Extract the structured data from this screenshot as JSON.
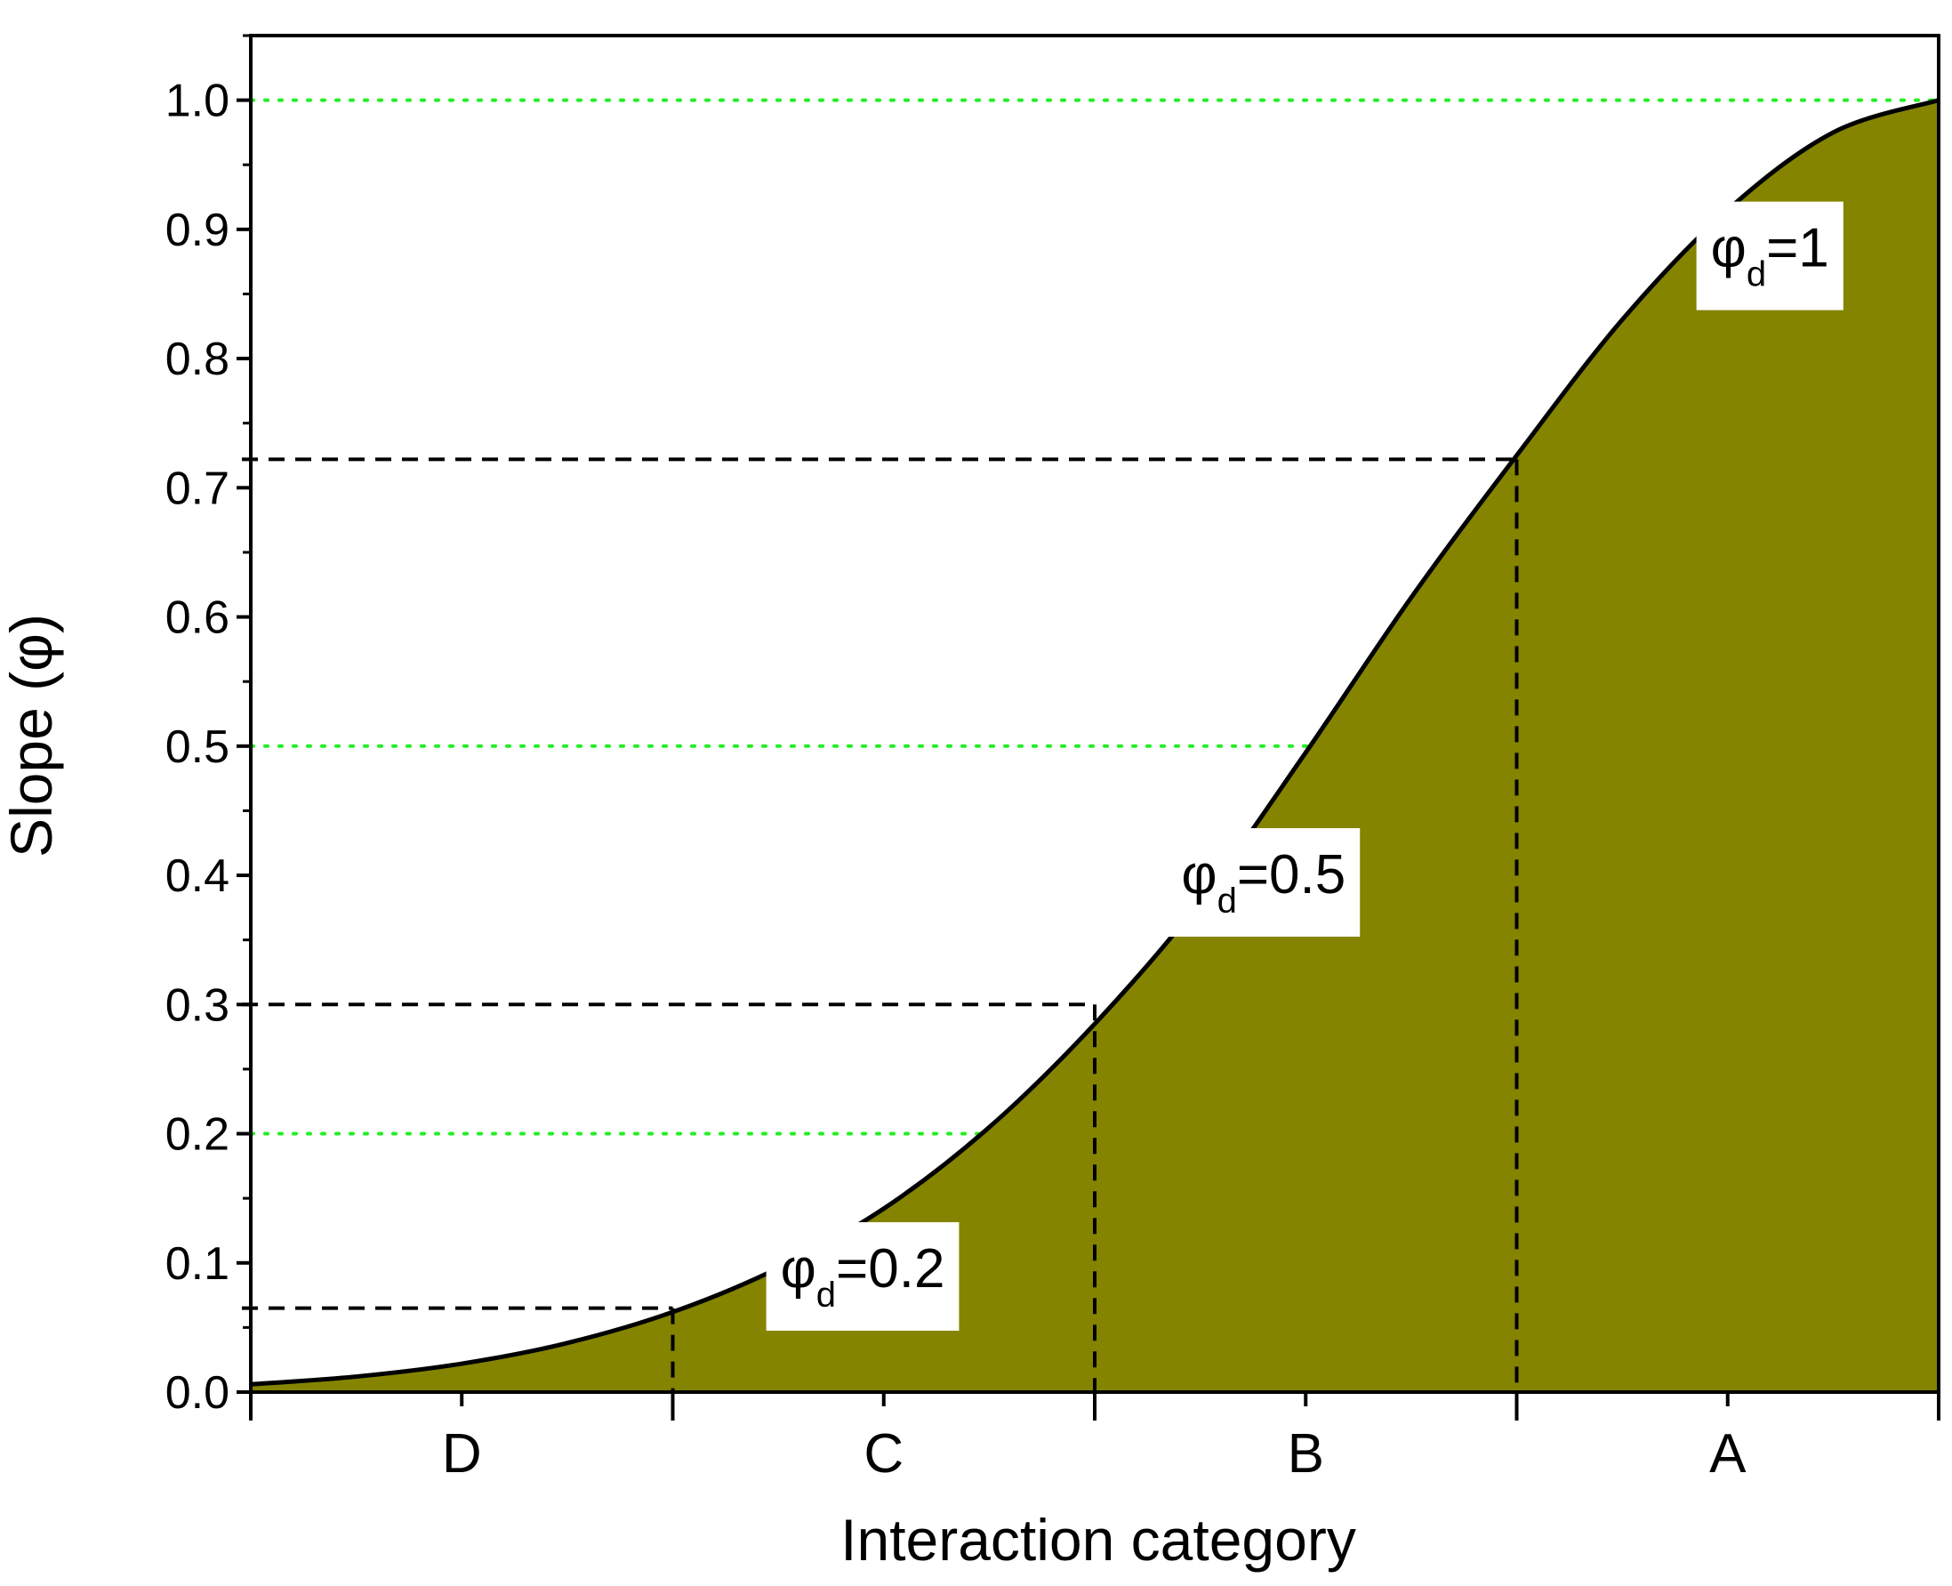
{
  "chart_data": {
    "type": "area",
    "xlabel": "Interaction category",
    "ylabel": "Slope (φ)",
    "ylim": [
      0,
      1.05
    ],
    "xlim": [
      0,
      4
    ],
    "yticks": [
      {
        "value": 0.0,
        "label": "0.0"
      },
      {
        "value": 0.1,
        "label": "0.1"
      },
      {
        "value": 0.2,
        "label": "0.2"
      },
      {
        "value": 0.3,
        "label": "0.3"
      },
      {
        "value": 0.4,
        "label": "0.4"
      },
      {
        "value": 0.5,
        "label": "0.5"
      },
      {
        "value": 0.6,
        "label": "0.6"
      },
      {
        "value": 0.7,
        "label": "0.7"
      },
      {
        "value": 0.8,
        "label": "0.8"
      },
      {
        "value": 0.9,
        "label": "0.9"
      },
      {
        "value": 1.0,
        "label": "1.0"
      }
    ],
    "yminor_step": 0.05,
    "category_boundaries": [
      0,
      1,
      2,
      3,
      4
    ],
    "categories": [
      {
        "label": "D",
        "center": 0.5
      },
      {
        "label": "C",
        "center": 1.5
      },
      {
        "label": "B",
        "center": 2.5
      },
      {
        "label": "A",
        "center": 3.5
      }
    ],
    "curve": {
      "x": [
        0,
        0.25,
        0.5,
        0.75,
        1.0,
        1.25,
        1.5,
        1.75,
        2.0,
        2.25,
        2.5,
        2.75,
        3.0,
        3.25,
        3.5,
        3.75,
        4.0
      ],
      "y": [
        0.006,
        0.012,
        0.022,
        0.038,
        0.062,
        0.096,
        0.142,
        0.205,
        0.285,
        0.38,
        0.495,
        0.615,
        0.725,
        0.83,
        0.915,
        0.975,
        1.0
      ]
    },
    "fill_color": "#848400",
    "reference_lines": [
      {
        "y": 0.2,
        "color": "#22ee22",
        "style": "dotted"
      },
      {
        "y": 0.5,
        "color": "#22ee22",
        "style": "dotted"
      },
      {
        "y": 1.0,
        "color": "#22ee22",
        "style": "dotted"
      }
    ],
    "threshold_markers": [
      {
        "x": 1,
        "y": 0.065
      },
      {
        "x": 2,
        "y": 0.3
      },
      {
        "x": 3,
        "y": 0.722
      }
    ],
    "annotations": [
      {
        "symbol": "φ",
        "subscript": "d",
        "text": "=0.2",
        "x": 1.45,
        "y": 0.095
      },
      {
        "symbol": "φ",
        "subscript": "d",
        "text": "=0.5",
        "x": 2.4,
        "y": 0.4
      },
      {
        "symbol": "φ",
        "subscript": "d",
        "text": "=1",
        "x": 3.6,
        "y": 0.885
      }
    ],
    "grid": false
  }
}
